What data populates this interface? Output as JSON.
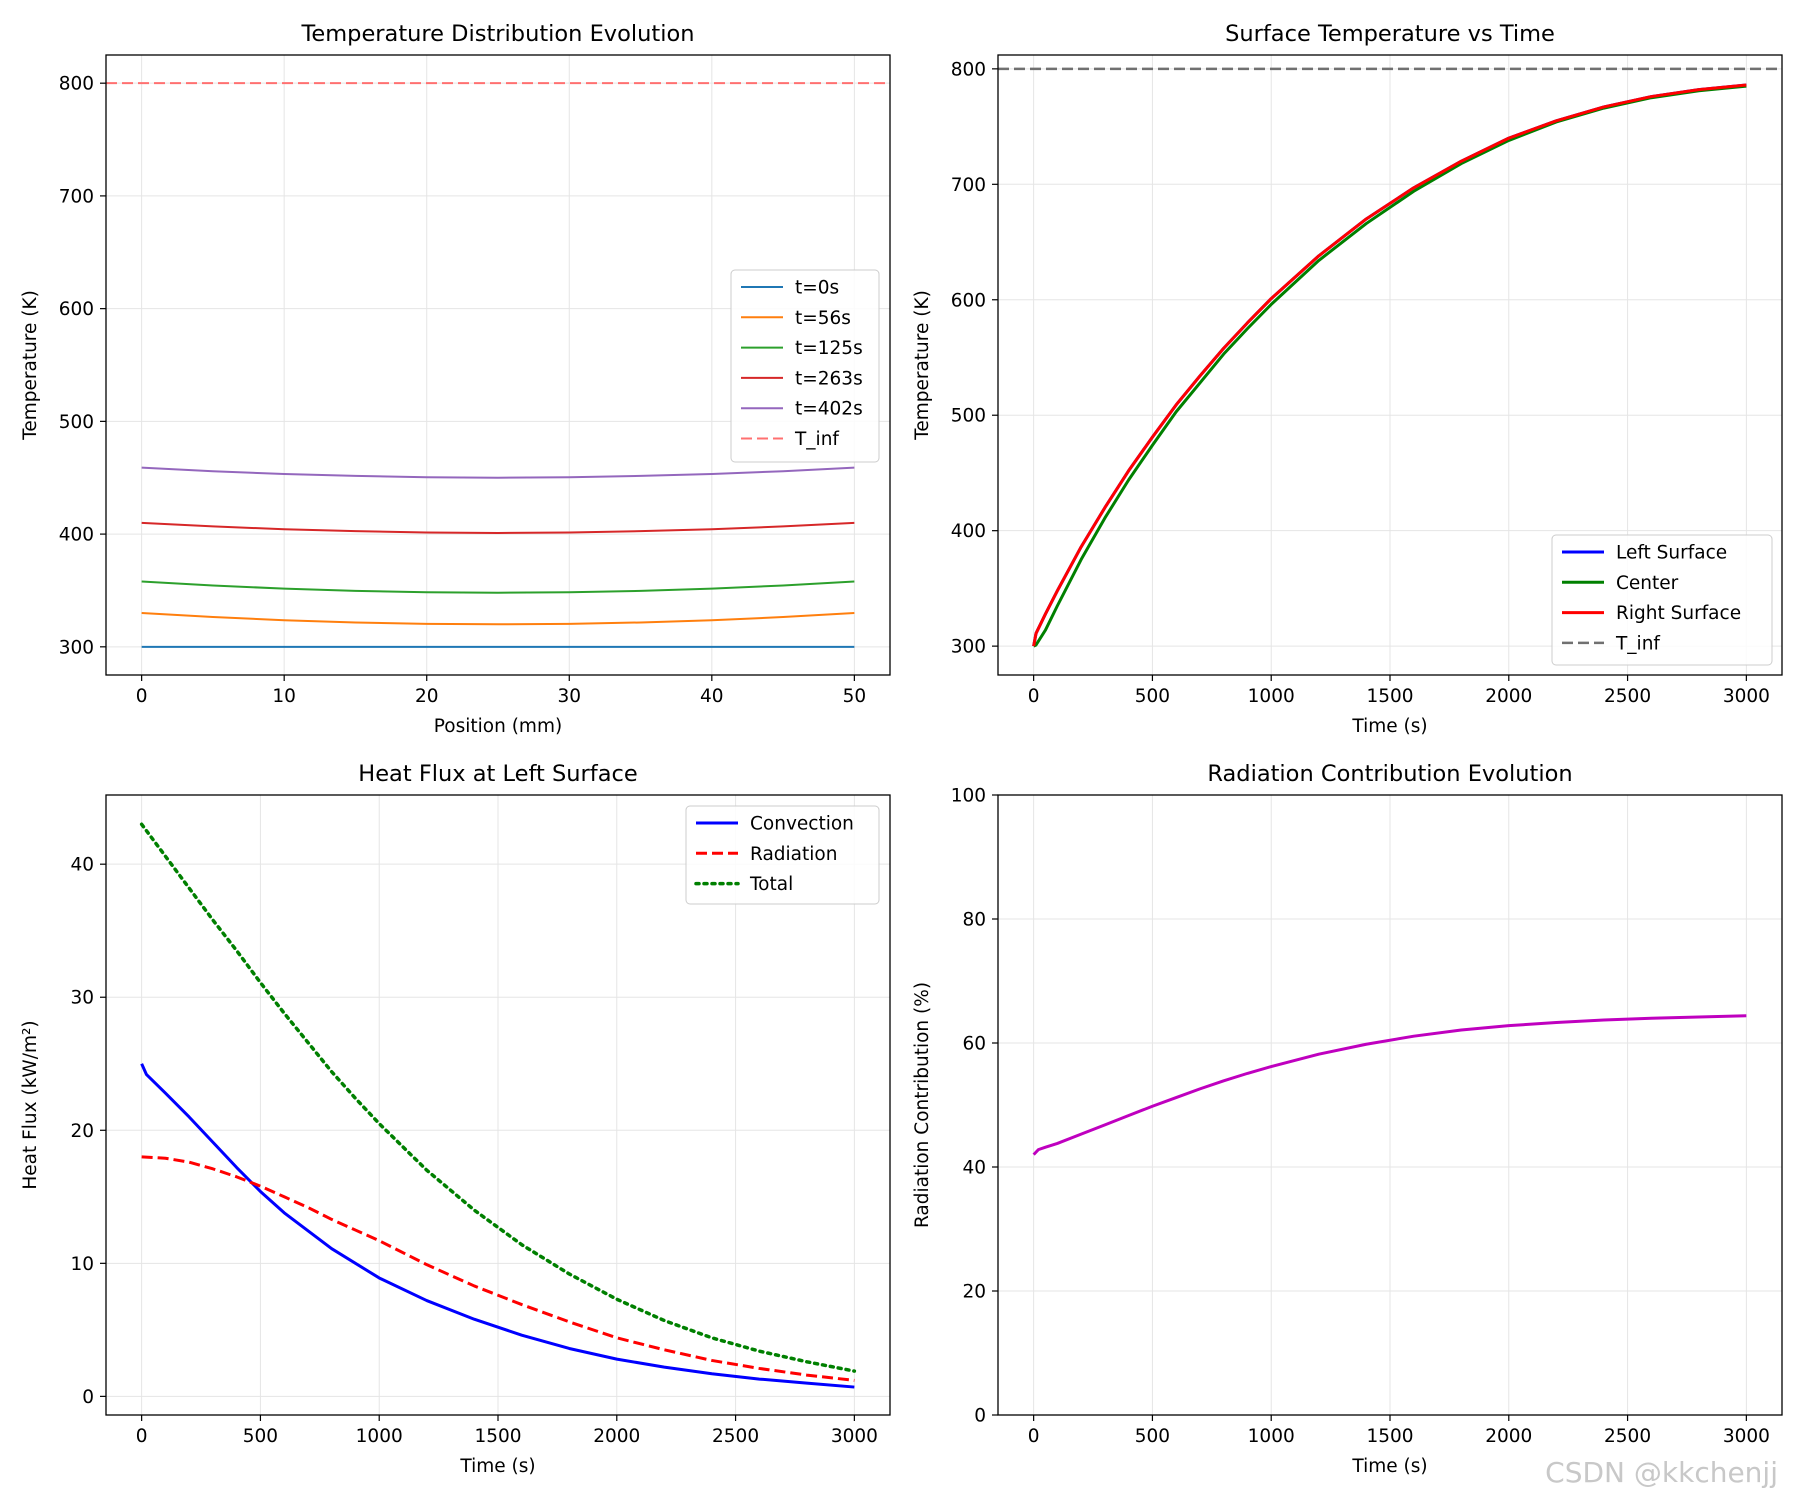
{
  "watermark": "CSDN @kkchenjj",
  "chart_data": [
    {
      "id": "temp-dist",
      "type": "line",
      "title": "Temperature Distribution Evolution",
      "xlabel": "Position (mm)",
      "ylabel": "Temperature (K)",
      "xlim": [
        -2.5,
        52.5
      ],
      "ylim": [
        275,
        825
      ],
      "xticks": [
        0,
        10,
        20,
        30,
        40,
        50
      ],
      "yticks": [
        300,
        400,
        500,
        600,
        700,
        800
      ],
      "grid": true,
      "legend_position": "center-right",
      "series": [
        {
          "name": "t=0s",
          "color": "#1f77b4",
          "style": "solid",
          "width": 2,
          "x": [
            0,
            5,
            10,
            15,
            20,
            25,
            30,
            35,
            40,
            45,
            50
          ],
          "y": [
            300,
            300,
            300,
            300,
            300,
            300,
            300,
            300,
            300,
            300,
            300
          ]
        },
        {
          "name": "t=56s",
          "color": "#ff7f0e",
          "style": "solid",
          "width": 2,
          "x": [
            0,
            5,
            10,
            15,
            20,
            25,
            30,
            35,
            40,
            45,
            50
          ],
          "y": [
            330,
            326.4,
            323.6,
            321.6,
            320.4,
            320,
            320.4,
            321.6,
            323.6,
            326.4,
            330
          ]
        },
        {
          "name": "t=125s",
          "color": "#2ca02c",
          "style": "solid",
          "width": 2,
          "x": [
            0,
            5,
            10,
            15,
            20,
            25,
            30,
            35,
            40,
            45,
            50
          ],
          "y": [
            358,
            354.4,
            351.6,
            349.6,
            348.4,
            348,
            348.4,
            349.6,
            351.6,
            354.4,
            358
          ]
        },
        {
          "name": "t=263s",
          "color": "#d62728",
          "style": "solid",
          "width": 2,
          "x": [
            0,
            5,
            10,
            15,
            20,
            25,
            30,
            35,
            40,
            45,
            50
          ],
          "y": [
            410,
            406.8,
            404.3,
            402.6,
            401.4,
            401,
            401.4,
            402.6,
            404.3,
            406.8,
            410
          ]
        },
        {
          "name": "t=402s",
          "color": "#9467bd",
          "style": "solid",
          "width": 2,
          "x": [
            0,
            5,
            10,
            15,
            20,
            25,
            30,
            35,
            40,
            45,
            50
          ],
          "y": [
            459,
            455.8,
            453.3,
            451.6,
            450.4,
            450,
            450.4,
            451.6,
            453.3,
            455.8,
            459
          ]
        },
        {
          "name": "T_inf",
          "color": "#ff7070",
          "style": "dashed",
          "width": 2,
          "x": [
            -2.5,
            52.5
          ],
          "y": [
            800,
            800
          ]
        }
      ]
    },
    {
      "id": "surface-temp",
      "type": "line",
      "title": "Surface Temperature vs Time",
      "xlabel": "Time (s)",
      "ylabel": "Temperature (K)",
      "xlim": [
        -150,
        3150
      ],
      "ylim": [
        275,
        812
      ],
      "xticks": [
        0,
        500,
        1000,
        1500,
        2000,
        2500,
        3000
      ],
      "yticks": [
        300,
        400,
        500,
        600,
        700,
        800
      ],
      "grid": true,
      "legend_position": "lower-right",
      "series": [
        {
          "name": "Left Surface",
          "color": "#0000ff",
          "style": "solid",
          "width": 3,
          "x": [
            0,
            10,
            50,
            100,
            200,
            300,
            400,
            500,
            600,
            700,
            800,
            900,
            1000,
            1200,
            1400,
            1600,
            1800,
            2000,
            2200,
            2400,
            2600,
            2800,
            3000
          ],
          "y": [
            300,
            311,
            328,
            348,
            386,
            420,
            452,
            481,
            509,
            534,
            558,
            580,
            601,
            638,
            670,
            697,
            720,
            740,
            755,
            767,
            776,
            782,
            786
          ]
        },
        {
          "name": "Center",
          "color": "#008000",
          "style": "solid",
          "width": 3,
          "x": [
            0,
            10,
            50,
            100,
            200,
            300,
            400,
            500,
            600,
            700,
            800,
            900,
            1000,
            1200,
            1400,
            1600,
            1800,
            2000,
            2200,
            2400,
            2600,
            2800,
            3000
          ],
          "y": [
            300,
            301,
            314,
            335,
            375,
            411,
            444,
            474,
            503,
            528,
            553,
            575,
            596,
            634,
            666,
            694,
            718,
            738,
            754,
            766,
            775,
            781,
            785
          ]
        },
        {
          "name": "Right Surface",
          "color": "#ff0000",
          "style": "solid",
          "width": 3,
          "x": [
            0,
            10,
            50,
            100,
            200,
            300,
            400,
            500,
            600,
            700,
            800,
            900,
            1000,
            1200,
            1400,
            1600,
            1800,
            2000,
            2200,
            2400,
            2600,
            2800,
            3000
          ],
          "y": [
            300,
            311,
            328,
            348,
            386,
            420,
            452,
            481,
            509,
            534,
            558,
            580,
            601,
            638,
            670,
            697,
            720,
            740,
            755,
            767,
            776,
            782,
            786
          ]
        },
        {
          "name": "T_inf",
          "color": "#707070",
          "style": "dashed",
          "width": 2.5,
          "x": [
            -150,
            3150
          ],
          "y": [
            800,
            800
          ]
        }
      ]
    },
    {
      "id": "heat-flux",
      "type": "line",
      "title": "Heat Flux at Left Surface",
      "xlabel": "Time (s)",
      "ylabel": "Heat Flux (kW/m²)",
      "xlim": [
        -150,
        3150
      ],
      "ylim": [
        -1.4,
        45.2
      ],
      "xticks": [
        0,
        500,
        1000,
        1500,
        2000,
        2500,
        3000
      ],
      "yticks": [
        0,
        10,
        20,
        30,
        40
      ],
      "grid": true,
      "legend_position": "top-right",
      "series": [
        {
          "name": "Convection",
          "color": "#0000ff",
          "style": "solid",
          "width": 3,
          "x": [
            0,
            5,
            20,
            100,
            200,
            300,
            400,
            500,
            600,
            800,
            1000,
            1200,
            1400,
            1600,
            1800,
            2000,
            2200,
            2400,
            2600,
            2800,
            3000
          ],
          "y": [
            25,
            24.8,
            24.2,
            22.8,
            21,
            19.1,
            17.2,
            15.4,
            13.8,
            11.1,
            8.9,
            7.2,
            5.8,
            4.6,
            3.6,
            2.8,
            2.2,
            1.7,
            1.3,
            1,
            0.7
          ]
        },
        {
          "name": "Radiation",
          "color": "#ff0000",
          "style": "dashed",
          "width": 3,
          "x": [
            0,
            100,
            200,
            300,
            400,
            500,
            600,
            700,
            800,
            900,
            1000,
            1200,
            1400,
            1600,
            1800,
            2000,
            2200,
            2400,
            2600,
            2800,
            3000
          ],
          "y": [
            18,
            17.9,
            17.6,
            17.1,
            16.5,
            15.8,
            15,
            14.2,
            13.3,
            12.5,
            11.7,
            9.9,
            8.3,
            6.9,
            5.6,
            4.4,
            3.5,
            2.7,
            2.1,
            1.6,
            1.2
          ]
        },
        {
          "name": "Total",
          "color": "#008000",
          "style": "dotted",
          "width": 3.5,
          "x": [
            0,
            100,
            200,
            300,
            400,
            500,
            600,
            700,
            800,
            900,
            1000,
            1200,
            1400,
            1600,
            1800,
            2000,
            2200,
            2400,
            2600,
            2800,
            3000
          ],
          "y": [
            43,
            40.6,
            38.2,
            35.8,
            33.5,
            31.1,
            28.8,
            26.6,
            24.4,
            22.4,
            20.5,
            17,
            14,
            11.4,
            9.2,
            7.3,
            5.7,
            4.4,
            3.4,
            2.6,
            1.9
          ]
        }
      ]
    },
    {
      "id": "radiation-contrib",
      "type": "line",
      "title": "Radiation Contribution Evolution",
      "xlabel": "Time (s)",
      "ylabel": "Radiation Contribution (%)",
      "xlim": [
        -150,
        3150
      ],
      "ylim": [
        0,
        100
      ],
      "xticks": [
        0,
        500,
        1000,
        1500,
        2000,
        2500,
        3000
      ],
      "yticks": [
        0,
        20,
        40,
        60,
        80,
        100
      ],
      "grid": true,
      "legend_position": "none",
      "series": [
        {
          "name": "",
          "color": "#bf00bf",
          "style": "solid",
          "width": 3,
          "x": [
            0,
            20,
            50,
            100,
            200,
            300,
            400,
            500,
            600,
            700,
            800,
            900,
            1000,
            1200,
            1400,
            1600,
            1800,
            2000,
            2200,
            2400,
            2600,
            2800,
            3000
          ],
          "y": [
            42,
            42.8,
            43.2,
            43.8,
            45.3,
            46.8,
            48.3,
            49.8,
            51.2,
            52.6,
            53.9,
            55.1,
            56.2,
            58.2,
            59.8,
            61.1,
            62.1,
            62.8,
            63.3,
            63.7,
            64,
            64.2,
            64.4
          ]
        }
      ]
    }
  ]
}
